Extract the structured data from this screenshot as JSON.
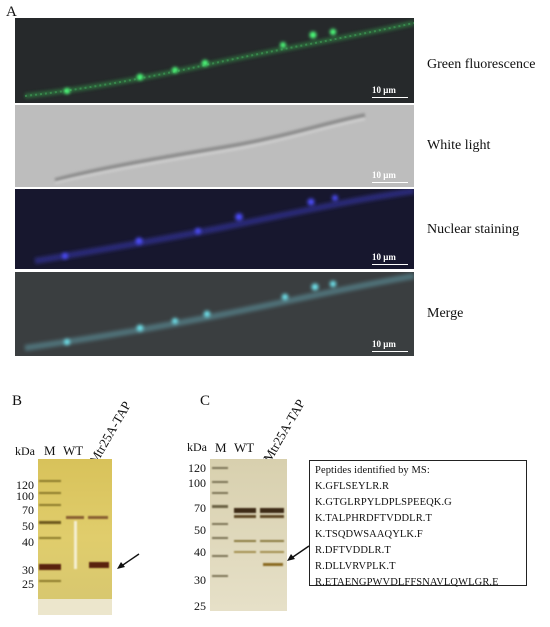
{
  "panel_a": {
    "letter": "A",
    "images": [
      {
        "label": "Green fluorescence",
        "scale": "10 μm"
      },
      {
        "label": "White light",
        "scale": "10 μm"
      },
      {
        "label": "Nuclear staining",
        "scale": "10 μm"
      },
      {
        "label": "Merge",
        "scale": "10 μm"
      }
    ]
  },
  "panel_b": {
    "letter": "B",
    "kda_label": "kDa",
    "lanes": [
      "M",
      "WT",
      "Mtr25A-TAP"
    ],
    "markers": [
      "120",
      "100",
      "70",
      "50",
      "40",
      "30",
      "25"
    ]
  },
  "panel_c": {
    "letter": "C",
    "kda_label": "kDa",
    "lanes": [
      "M",
      "WT",
      "Mtr25A-TAP"
    ],
    "markers": [
      "120",
      "100",
      "70",
      "50",
      "40",
      "30",
      "25"
    ],
    "box_title": "Peptides identified by MS:",
    "peptides": [
      "K.GFLSEYLR.R",
      "K.GTGLRPYLDPLSPEEQK.G",
      "K.TALPHRDFTVDDLR.T",
      "K.TSQDWSAAQYLK.F",
      "R.DFTVDDLR.T",
      "R.DLLVRVPLK.T",
      "R.ETAENGPWVDLFFSNAVLQWLGR.E"
    ]
  }
}
